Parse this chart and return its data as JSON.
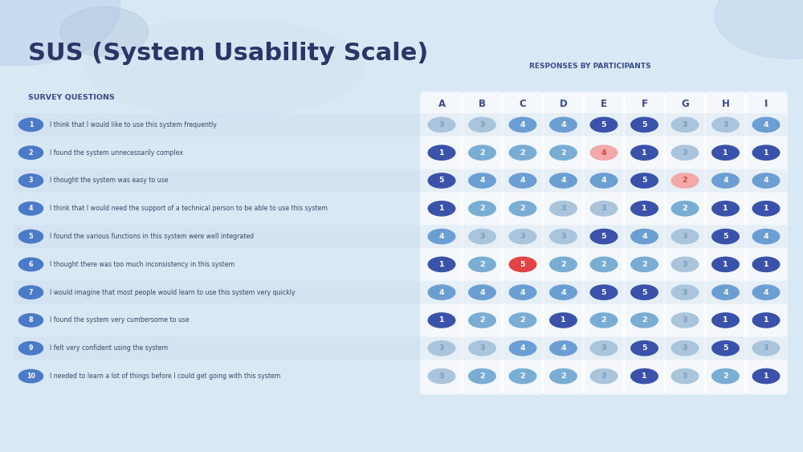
{
  "title": "SUS (System Usability Scale)",
  "subtitle_left": "SURVEY QUESTIONS",
  "subtitle_right": "RESPONSES BY PARTICIPANTS",
  "participants": [
    "A",
    "B",
    "C",
    "D",
    "E",
    "F",
    "G",
    "H",
    "I"
  ],
  "questions": [
    "I think that I would like to use this system frequently",
    "I found the system unnecessarily complex",
    "I thought the system was easy to use",
    "I think that I would need the support of a technical person to be able to use this system",
    "I found the various functions in this system were well integrated",
    "I thought there was too much inconsistency in this system",
    "I would imagine that most people would learn to use this system very quickly",
    "I found the system very cumbersome to use",
    "I felt very confident using the system",
    "I needed to learn a lot of things before I could get going with this system"
  ],
  "data": [
    [
      3,
      3,
      4,
      4,
      5,
      5,
      3,
      3,
      4
    ],
    [
      1,
      2,
      2,
      2,
      4,
      1,
      3,
      1,
      1
    ],
    [
      5,
      4,
      4,
      4,
      4,
      5,
      2,
      4,
      4
    ],
    [
      1,
      2,
      2,
      3,
      3,
      1,
      2,
      1,
      1
    ],
    [
      4,
      3,
      3,
      3,
      5,
      4,
      3,
      5,
      4
    ],
    [
      1,
      2,
      5,
      2,
      2,
      2,
      3,
      1,
      1
    ],
    [
      4,
      4,
      4,
      4,
      5,
      5,
      3,
      4,
      4
    ],
    [
      1,
      2,
      2,
      1,
      2,
      2,
      3,
      1,
      1
    ],
    [
      3,
      3,
      4,
      4,
      3,
      5,
      3,
      5,
      3
    ],
    [
      3,
      2,
      2,
      2,
      3,
      1,
      3,
      2,
      1
    ]
  ],
  "special_cells": [
    {
      "row": 1,
      "col": 4,
      "fc": "#f4a8a8",
      "tc": "#cc4444"
    },
    {
      "row": 2,
      "col": 6,
      "fc": "#f4a8a8",
      "tc": "#cc4444"
    },
    {
      "row": 5,
      "col": 2,
      "fc": "#e04444",
      "tc": "#ffffff"
    }
  ],
  "bg_color": "#d8e8f5",
  "title_color": "#2a3668",
  "header_color": "#3a4a8a",
  "circle_dark_blue": "#3a52aa",
  "circle_mid_blue": "#6b9fd4",
  "circle_light_blue": "#aac4dc",
  "pill_bg": "#ffffff",
  "row_even_bg": "#c8d8e8",
  "q_num_color": "#4a7ac8",
  "q_text_color": "#3a4a6a"
}
